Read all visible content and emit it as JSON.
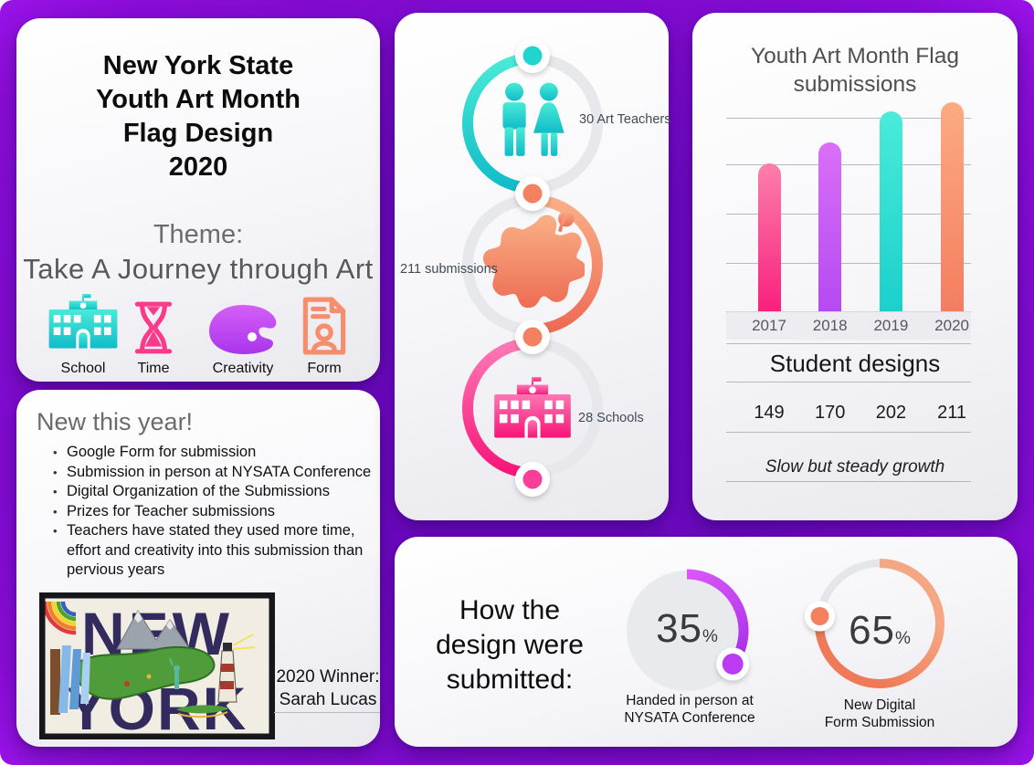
{
  "title_card": {
    "title_lines": [
      "New York State",
      "Youth Art Month",
      "Flag Design",
      "2020"
    ],
    "theme_label": "Theme:",
    "theme_text": "Take A Journey through Art",
    "icons": [
      {
        "name": "school-icon",
        "label": "School",
        "color": "#1fd0cd"
      },
      {
        "name": "time-icon",
        "label": "Time",
        "color": "#fb3a8c"
      },
      {
        "name": "creativity-icon",
        "label": "Creativity",
        "color": "#bb4cf2"
      },
      {
        "name": "form-icon",
        "label": "Form",
        "color": "#f68d6d"
      }
    ]
  },
  "new_this_year_card": {
    "heading": "New this year!",
    "bullets": [
      "Google Form for submission",
      "Submission in person at NYSATA Conference",
      "Digital Organization of the Submissions",
      "Prizes for Teacher submissions",
      "Teachers have stated they used more time, effort and creativity into this submission than pervious years"
    ],
    "artwork_text_top": "NEW",
    "artwork_text_bottom": "YORK",
    "winner_label_line1": "2020 Winner:",
    "winner_label_line2": "Sarah Lucas"
  },
  "timeline_card": {
    "items": [
      {
        "label": "30 Art Teachers",
        "icon": "art-teachers-couple-icon",
        "color": "#1fd0cd",
        "side": "right"
      },
      {
        "label": "211 submissions",
        "icon": "paint-splat-icon",
        "color": "#f3815f",
        "side": "left"
      },
      {
        "label": "28 Schools",
        "icon": "school-building-icon",
        "color": "#fb2e8a",
        "side": "right"
      }
    ]
  },
  "chart_card": {
    "title_lines": [
      "Youth Art Month Flag",
      "submissions"
    ],
    "table_heading": "Student designs",
    "note": "Slow but steady growth"
  },
  "chart_data": [
    {
      "type": "bar",
      "title": "Youth Art Month Flag submissions",
      "categories": [
        "2017",
        "2018",
        "2019",
        "2020"
      ],
      "values": [
        149,
        170,
        202,
        211
      ],
      "series": [
        {
          "name": "Student designs",
          "values": [
            149,
            170,
            202,
            211
          ]
        }
      ],
      "xlabel": "",
      "ylabel": "",
      "ylim": [
        0,
        220
      ],
      "gridlines": true,
      "legend": false,
      "annotation": "Slow but steady growth",
      "bar_colors": [
        [
          "#fc7fab",
          "#f9207e"
        ],
        [
          "#da6ff8",
          "#b44af1"
        ],
        [
          "#4aebd9",
          "#1bd0cc"
        ],
        [
          "#fcab81",
          "#f37e5f"
        ]
      ]
    },
    {
      "type": "pie",
      "title": "How the design were submitted:",
      "labels": [
        "Handed in person at NYSATA Conference",
        "New Digital Form Submission"
      ],
      "values": [
        35,
        65
      ],
      "unit": "%",
      "colors": [
        "#bb3cf2",
        "#f3815f"
      ],
      "legend": false
    }
  ],
  "submission_card": {
    "heading_lines": [
      "How the",
      "design were",
      "submitted:"
    ],
    "donuts": [
      {
        "value": "35",
        "unit": "%",
        "label_lines": [
          "Handed in person at",
          "NYSATA Conference"
        ],
        "color": "#bb3cf2"
      },
      {
        "value": "65",
        "unit": "%",
        "label_lines": [
          "New Digital",
          "Form Submission"
        ],
        "color": "#f3815f"
      }
    ]
  },
  "colors": {
    "background_purple": "#7b0bca",
    "card_background": "#f6f6f9",
    "teal": "#1fd0cd",
    "pink": "#fb2e8a",
    "purple": "#bb4cf2",
    "orange": "#f3815f",
    "ring_gray": "#e6e8ec"
  }
}
